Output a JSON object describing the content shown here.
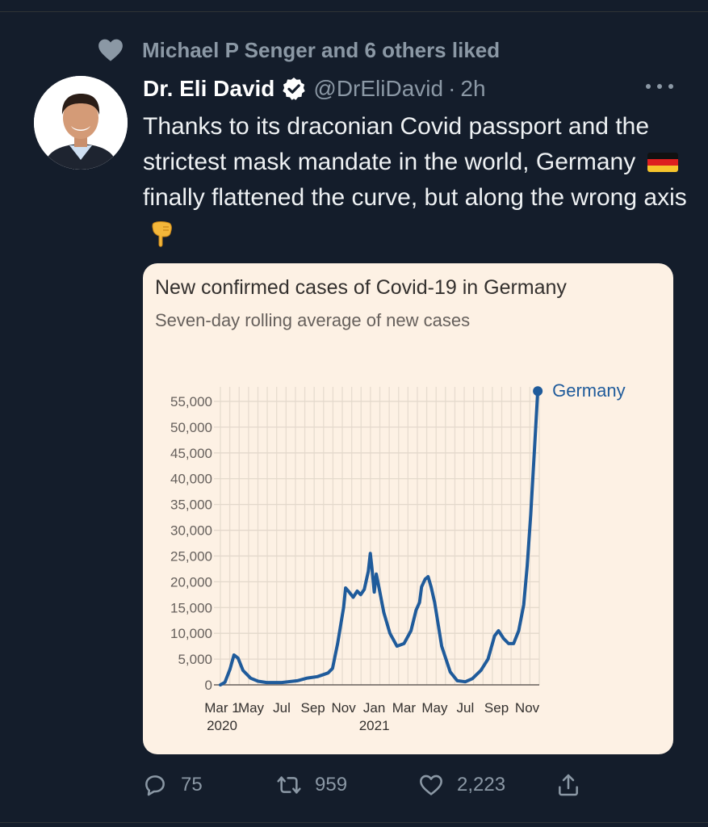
{
  "social_context": {
    "text": "Michael P Senger and 6 others liked",
    "icon": "heart-icon"
  },
  "tweet": {
    "author_name": "Dr. Eli David",
    "handle": "@DrEliDavid",
    "separator": "·",
    "time": "2h",
    "text_part1": "Thanks to its draconian Covid passport and the strictest mask mandate in the world, Germany",
    "flag_emoji": "🇩🇪",
    "text_part2": "finally flattened the curve, but along the wrong axis",
    "pointing_emoji": "👇"
  },
  "actions": {
    "replies": "75",
    "retweets": "959",
    "likes": "2,223"
  },
  "colors": {
    "background": "#141d2b",
    "chart_bg": "#fdf1e4",
    "series": "#1f5b9b",
    "muted": "#8b98a5"
  },
  "chart_data": {
    "type": "line",
    "title": "New confirmed cases of Covid-19 in Germany",
    "subtitle": "Seven-day rolling average of new cases",
    "y_ticks": [
      "55,000",
      "50,000",
      "45,000",
      "40,000",
      "35,000",
      "30,000",
      "25,000",
      "20,000",
      "15,000",
      "10,000",
      "5,000",
      "0"
    ],
    "y_tick_values": [
      55000,
      50000,
      45000,
      40000,
      35000,
      30000,
      25000,
      20000,
      15000,
      10000,
      5000,
      0
    ],
    "ylim": [
      0,
      57000
    ],
    "x_tick_labels": [
      "Mar 1",
      "May",
      "Jul",
      "Sep",
      "Nov",
      "Jan",
      "Mar",
      "May",
      "Jul",
      "Sep",
      "Nov"
    ],
    "x_tick_years": [
      "2020",
      "",
      "",
      "",
      "",
      "2021",
      "",
      "",
      "",
      "",
      ""
    ],
    "grid": true,
    "legend_label": "Germany",
    "series": [
      {
        "name": "Germany",
        "x": [
          "2020-03-01",
          "2020-03-10",
          "2020-03-20",
          "2020-03-28",
          "2020-04-05",
          "2020-04-15",
          "2020-04-30",
          "2020-05-15",
          "2020-06-01",
          "2020-07-01",
          "2020-08-01",
          "2020-08-20",
          "2020-09-10",
          "2020-10-01",
          "2020-10-10",
          "2020-10-20",
          "2020-11-01",
          "2020-11-05",
          "2020-11-12",
          "2020-11-20",
          "2020-11-28",
          "2020-12-05",
          "2020-12-12",
          "2020-12-20",
          "2020-12-24",
          "2020-12-27",
          "2021-01-01",
          "2021-01-05",
          "2021-01-10",
          "2021-01-15",
          "2021-01-20",
          "2021-02-01",
          "2021-02-15",
          "2021-03-01",
          "2021-03-15",
          "2021-03-25",
          "2021-04-01",
          "2021-04-05",
          "2021-04-12",
          "2021-04-18",
          "2021-04-24",
          "2021-05-01",
          "2021-05-15",
          "2021-06-01",
          "2021-06-15",
          "2021-07-01",
          "2021-07-15",
          "2021-08-01",
          "2021-08-15",
          "2021-08-28",
          "2021-09-05",
          "2021-09-15",
          "2021-09-25",
          "2021-10-05",
          "2021-10-15",
          "2021-10-25",
          "2021-11-01",
          "2021-11-08",
          "2021-11-15",
          "2021-11-22"
        ],
        "y": [
          0,
          500,
          3000,
          5800,
          5200,
          2800,
          1300,
          700,
          450,
          450,
          800,
          1300,
          1600,
          2300,
          3200,
          8000,
          15000,
          18800,
          18000,
          17000,
          18200,
          17500,
          18500,
          22000,
          25500,
          23000,
          18000,
          21500,
          19000,
          16500,
          14000,
          10000,
          7500,
          8000,
          10500,
          14500,
          16000,
          19000,
          20500,
          21000,
          19000,
          16000,
          7500,
          2500,
          800,
          600,
          1200,
          2800,
          5000,
          9500,
          10500,
          9000,
          8000,
          8000,
          10500,
          15500,
          23000,
          33000,
          45000,
          57000
        ]
      }
    ]
  }
}
